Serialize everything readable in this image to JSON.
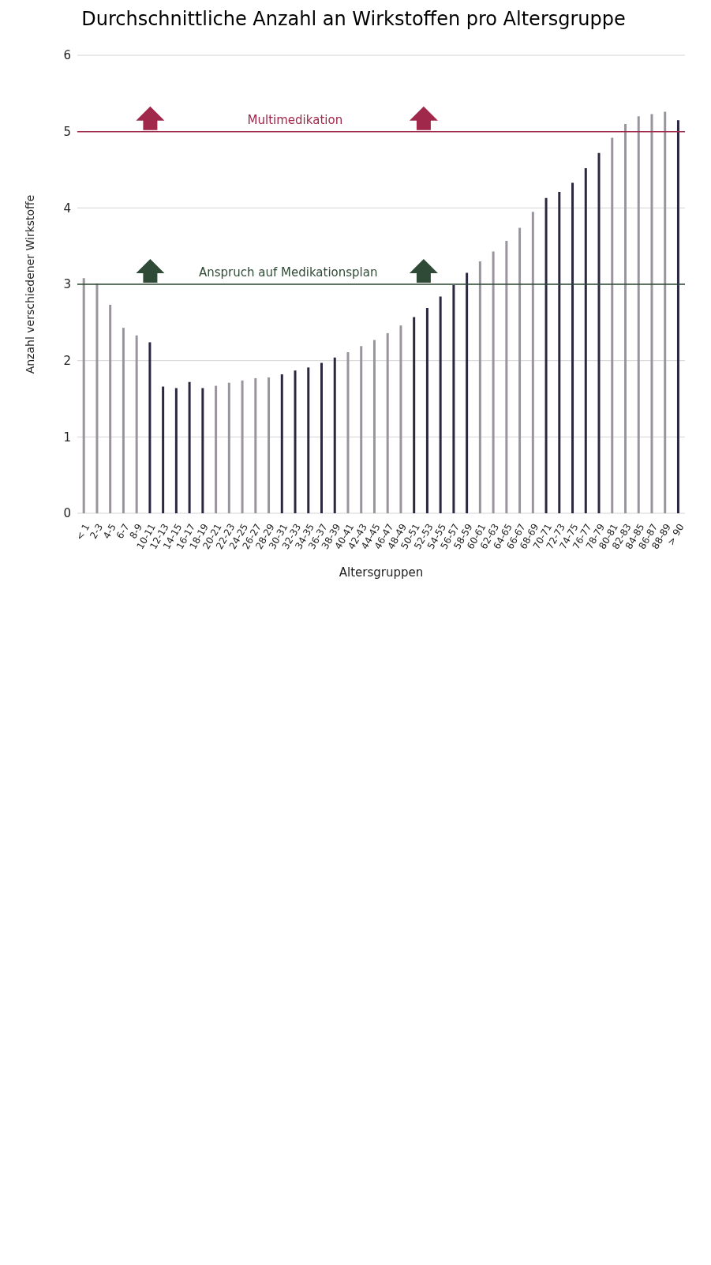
{
  "chart_data": {
    "type": "bar",
    "title": "Durchschnittliche Anzahl an Wirkstoffen pro Altersgruppe",
    "xlabel": "Altersgruppen",
    "ylabel": "Anzahl verschiedener Wirkstoffe",
    "categories": [
      "< 1",
      "2-3",
      "4-5",
      "6-7",
      "8-9",
      "10-11",
      "12-13",
      "14-15",
      "16-17",
      "18-19",
      "20-21",
      "22-23",
      "24-25",
      "26-27",
      "28-29",
      "30-31",
      "32-33",
      "34-35",
      "36-37",
      "38-39",
      "40-41",
      "42-43",
      "44-45",
      "46-47",
      "48-49",
      "50-51",
      "52-53",
      "54-55",
      "56-57",
      "58-59",
      "60-61",
      "62-63",
      "64-65",
      "66-67",
      "68-69",
      "70-71",
      "72-73",
      "74-75",
      "76-77",
      "78-79",
      "80-81",
      "82-83",
      "84-85",
      "86-87",
      "88-89",
      "> 90"
    ],
    "values": [
      3.08,
      3.01,
      2.73,
      2.43,
      2.33,
      2.24,
      1.66,
      1.64,
      1.72,
      1.64,
      1.67,
      1.71,
      1.74,
      1.77,
      1.78,
      1.82,
      1.87,
      1.91,
      1.97,
      2.04,
      2.11,
      2.19,
      2.27,
      2.36,
      2.46,
      2.57,
      2.69,
      2.84,
      2.99,
      3.15,
      3.3,
      3.43,
      3.57,
      3.74,
      3.95,
      4.13,
      4.21,
      4.33,
      4.52,
      4.72,
      4.92,
      5.1,
      5.2,
      5.23,
      5.26,
      5.15
    ],
    "colors": [
      "#9a949e",
      "#9a949e",
      "#9a949e",
      "#9a949e",
      "#9a949e",
      "#2b2740",
      "#2b2740",
      "#2b2740",
      "#2b2740",
      "#2b2740",
      "#9a949e",
      "#9a949e",
      "#9a949e",
      "#9a949e",
      "#9a949e",
      "#2b2740",
      "#2b2740",
      "#2b2740",
      "#2b2740",
      "#2b2740",
      "#9a949e",
      "#9a949e",
      "#9a949e",
      "#9a949e",
      "#9a949e",
      "#2b2740",
      "#2b2740",
      "#2b2740",
      "#2b2740",
      "#2b2740",
      "#9a949e",
      "#9a949e",
      "#9a949e",
      "#9a949e",
      "#9a949e",
      "#2b2740",
      "#2b2740",
      "#2b2740",
      "#2b2740",
      "#2b2740",
      "#9a949e",
      "#9a949e",
      "#9a949e",
      "#9a949e",
      "#9a949e",
      "#2b2740"
    ],
    "ylim": [
      0,
      6
    ],
    "yticks": [
      0,
      1,
      2,
      3,
      4,
      5,
      6
    ],
    "grid": "y",
    "ref_lines": [
      {
        "axis": "y",
        "value": 5,
        "label": "Multimedikation",
        "color": "#a0284a"
      },
      {
        "axis": "y",
        "value": 3,
        "label": "Anspruch auf Medikationsplan",
        "color": "#2f4a36"
      }
    ]
  }
}
